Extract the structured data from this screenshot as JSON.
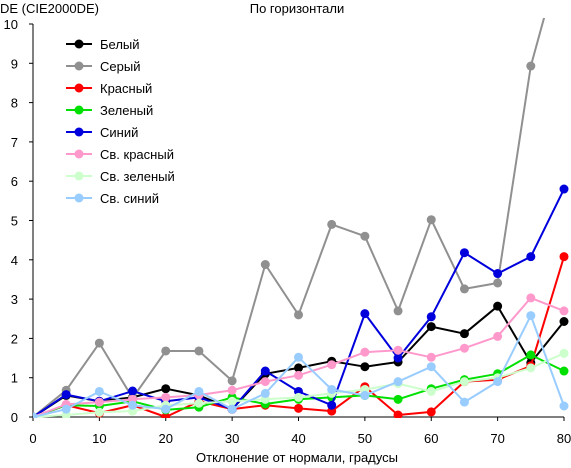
{
  "chart_data": {
    "type": "line",
    "title": "По горизонтали",
    "ylabel": "DE (CIE2000DE)",
    "xlabel": "Отклонение от нормали, градусы",
    "xlim": [
      0,
      80
    ],
    "ylim": [
      0,
      10
    ],
    "xticks": [
      0,
      10,
      20,
      30,
      40,
      50,
      60,
      70,
      80
    ],
    "yticks": [
      0,
      1,
      2,
      3,
      4,
      5,
      6,
      7,
      8,
      9,
      10
    ],
    "grid": false,
    "legend_position": "top-left",
    "x": [
      0,
      5,
      10,
      15,
      20,
      25,
      30,
      35,
      40,
      45,
      50,
      55,
      60,
      65,
      70,
      75,
      80
    ],
    "series": [
      {
        "name": "Белый",
        "color": "#000000",
        "values": [
          0,
          0.55,
          0.4,
          0.5,
          0.72,
          0.55,
          0.2,
          1.1,
          1.25,
          1.42,
          1.28,
          1.4,
          2.3,
          2.12,
          2.82,
          1.38,
          2.43
        ]
      },
      {
        "name": "Серый",
        "color": "#909090",
        "values": [
          0,
          0.68,
          1.88,
          0.48,
          1.68,
          1.68,
          0.92,
          3.88,
          2.6,
          4.9,
          4.6,
          2.7,
          5.02,
          3.26,
          3.41,
          8.93,
          12
        ]
      },
      {
        "name": "Красный",
        "color": "#ff0000",
        "values": [
          0,
          0.3,
          0.1,
          0.3,
          0.0,
          0.4,
          0.2,
          0.3,
          0.22,
          0.15,
          0.77,
          0.05,
          0.13,
          0.9,
          0.95,
          1.3,
          4.08
        ]
      },
      {
        "name": "Зеленый",
        "color": "#00e000",
        "values": [
          0,
          0.3,
          0.28,
          0.4,
          0.18,
          0.25,
          0.5,
          0.33,
          0.45,
          0.5,
          0.55,
          0.45,
          0.72,
          0.95,
          1.1,
          1.58,
          1.17
        ]
      },
      {
        "name": "Синий",
        "color": "#0000dd",
        "values": [
          0,
          0.57,
          0.4,
          0.66,
          0.4,
          0.5,
          0.2,
          1.17,
          0.65,
          0.3,
          2.63,
          1.5,
          2.55,
          4.18,
          3.65,
          4.08,
          5.8
        ]
      },
      {
        "name": "Св. красный",
        "color": "#ff99cc",
        "values": [
          0,
          0.32,
          0.38,
          0.45,
          0.5,
          0.56,
          0.68,
          0.9,
          1.06,
          1.33,
          1.65,
          1.7,
          1.52,
          1.75,
          2.05,
          3.03,
          2.7
        ]
      },
      {
        "name": "Св. зеленый",
        "color": "#ccffcc",
        "values": [
          0,
          0.05,
          0.12,
          0.15,
          0.3,
          0.35,
          0.4,
          0.45,
          0.5,
          0.6,
          0.7,
          0.85,
          0.65,
          0.9,
          1.0,
          1.25,
          1.62
        ]
      },
      {
        "name": "Св. синий",
        "color": "#99ccff",
        "values": [
          0,
          0.2,
          0.65,
          0.3,
          0.2,
          0.65,
          0.2,
          0.6,
          1.52,
          0.7,
          0.55,
          0.9,
          1.28,
          0.38,
          0.9,
          2.58,
          0.28
        ]
      }
    ]
  }
}
